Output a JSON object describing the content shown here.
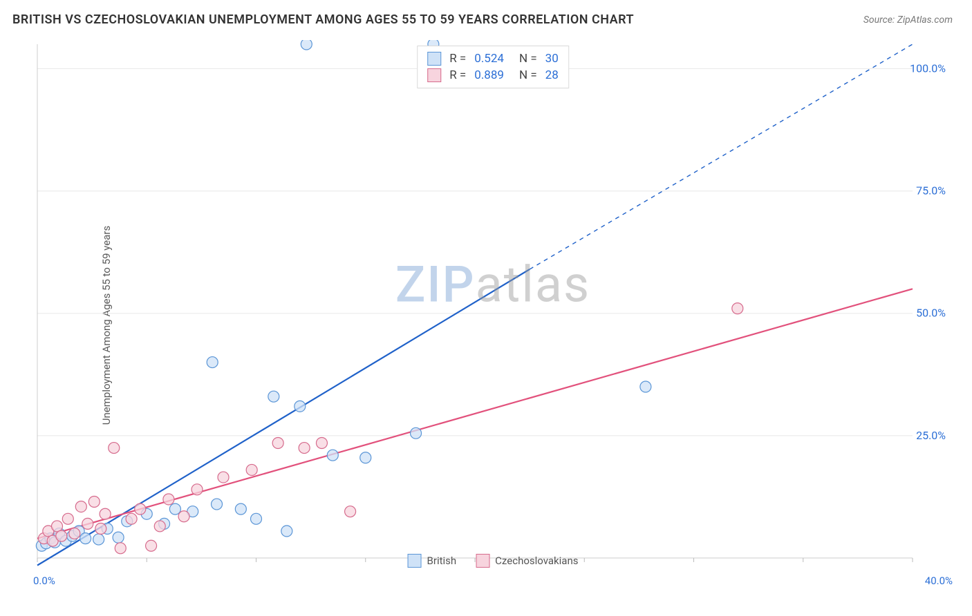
{
  "title": "BRITISH VS CZECHOSLOVAKIAN UNEMPLOYMENT AMONG AGES 55 TO 59 YEARS CORRELATION CHART",
  "source": "Source: ZipAtlas.com",
  "ylabel": "Unemployment Among Ages 55 to 59 years",
  "watermark_zip": "ZIP",
  "watermark_atlas": "atlas",
  "chart": {
    "type": "scatter",
    "xlim": [
      0,
      40
    ],
    "ylim": [
      0,
      105
    ],
    "x_ticks": [
      0,
      5,
      10,
      15,
      20,
      25,
      30,
      35,
      40
    ],
    "y_ticks": [
      25,
      50,
      75,
      100
    ],
    "x_tick_labels": {
      "0": "0.0%",
      "40": "40.0%"
    },
    "y_tick_labels": {
      "25": "25.0%",
      "50": "50.0%",
      "75": "75.0%",
      "100": "100.0%"
    },
    "grid_color": "#e8e8e8",
    "axis_color": "#cccccc",
    "tick_color": "#bbbbbb",
    "axis_label_color": "#2c6fd6",
    "background_color": "#ffffff",
    "marker_radius": 8,
    "marker_stroke_width": 1.2,
    "line_width": 2.2,
    "series": [
      {
        "id": "british",
        "label": "British",
        "fill": "#cfe2f7",
        "stroke": "#5a95d6",
        "line_color": "#1f61c9",
        "R": "0.524",
        "N": "30",
        "regress_start": [
          0,
          -1.5
        ],
        "solid_end": [
          22.5,
          59
        ],
        "dash_end": [
          40,
          105
        ],
        "points": [
          [
            0.2,
            2.5
          ],
          [
            0.4,
            3.0
          ],
          [
            0.6,
            4.0
          ],
          [
            0.8,
            3.2
          ],
          [
            1.0,
            5.0
          ],
          [
            1.3,
            3.5
          ],
          [
            1.6,
            4.5
          ],
          [
            1.9,
            5.5
          ],
          [
            2.2,
            4.0
          ],
          [
            2.8,
            3.8
          ],
          [
            3.2,
            6.0
          ],
          [
            3.7,
            4.2
          ],
          [
            4.1,
            7.5
          ],
          [
            5.0,
            9.0
          ],
          [
            5.8,
            7.0
          ],
          [
            6.3,
            10.0
          ],
          [
            7.1,
            9.5
          ],
          [
            8.0,
            40.0
          ],
          [
            8.2,
            11.0
          ],
          [
            9.3,
            10.0
          ],
          [
            10.0,
            8.0
          ],
          [
            10.8,
            33.0
          ],
          [
            11.4,
            5.5
          ],
          [
            12.0,
            31.0
          ],
          [
            12.3,
            105.0
          ],
          [
            13.5,
            21.0
          ],
          [
            15.0,
            20.5
          ],
          [
            17.3,
            25.5
          ],
          [
            18.1,
            105.0
          ],
          [
            27.8,
            35.0
          ]
        ]
      },
      {
        "id": "czech",
        "label": "Czechoslovakians",
        "fill": "#f7d4de",
        "stroke": "#d66a8c",
        "line_color": "#e2517c",
        "R": "0.889",
        "N": "28",
        "regress_start": [
          0,
          4
        ],
        "solid_end": [
          40,
          55
        ],
        "dash_end": null,
        "points": [
          [
            0.3,
            4.0
          ],
          [
            0.5,
            5.5
          ],
          [
            0.7,
            3.5
          ],
          [
            0.9,
            6.5
          ],
          [
            1.1,
            4.5
          ],
          [
            1.4,
            8.0
          ],
          [
            1.7,
            5.0
          ],
          [
            2.0,
            10.5
          ],
          [
            2.3,
            7.0
          ],
          [
            2.6,
            11.5
          ],
          [
            2.9,
            6.0
          ],
          [
            3.1,
            9.0
          ],
          [
            3.5,
            22.5
          ],
          [
            3.8,
            2.0
          ],
          [
            4.3,
            8.0
          ],
          [
            4.7,
            10.0
          ],
          [
            5.2,
            2.5
          ],
          [
            5.6,
            6.5
          ],
          [
            6.0,
            12.0
          ],
          [
            6.7,
            8.5
          ],
          [
            7.3,
            14.0
          ],
          [
            8.5,
            16.5
          ],
          [
            9.8,
            18.0
          ],
          [
            11.0,
            23.5
          ],
          [
            12.2,
            22.5
          ],
          [
            13.0,
            23.5
          ],
          [
            14.3,
            9.5
          ],
          [
            32.0,
            51.0
          ]
        ]
      }
    ]
  },
  "stat_legend": {
    "r_prefix": "R = ",
    "n_prefix": "N = "
  }
}
